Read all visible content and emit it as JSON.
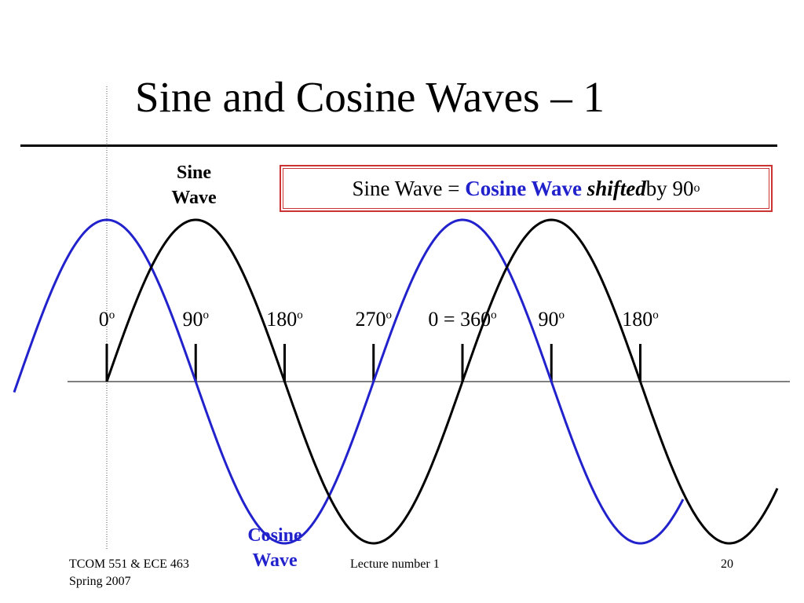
{
  "slide": {
    "title": "Sine and Cosine Waves – 1",
    "callout": {
      "prefix": "Sine Wave = ",
      "highlight": "Cosine Wave",
      "emphasis": "shifted",
      "suffix": " by 90",
      "degree_mark": "o"
    },
    "labels": {
      "sine_line1": "Sine",
      "sine_line2": "Wave",
      "cosine_line1": "Cosine",
      "cosine_line2": "Wave"
    },
    "ticks": [
      {
        "value": "0",
        "mark": "o"
      },
      {
        "value": "90",
        "mark": "o"
      },
      {
        "value": "180",
        "mark": "o"
      },
      {
        "value": "270",
        "mark": "o"
      },
      {
        "value": "0 = 360",
        "mark": "o"
      },
      {
        "value": "90",
        "mark": "o"
      },
      {
        "value": "180",
        "mark": "o"
      }
    ],
    "footer": {
      "course": "TCOM 551 & ECE 463",
      "term": "Spring 2007",
      "lecture": "Lecture number 1",
      "page": "20"
    },
    "colors": {
      "sine": "#000000",
      "cosine": "#2222cc",
      "callout_border": "#cc3333"
    }
  },
  "chart_data": {
    "type": "line",
    "x_degrees": [
      0,
      90,
      180,
      270,
      360,
      450,
      540
    ],
    "series": [
      {
        "function": "sine",
        "color": "#000000"
      },
      {
        "function": "cosine",
        "color": "#2222cc"
      }
    ]
  }
}
